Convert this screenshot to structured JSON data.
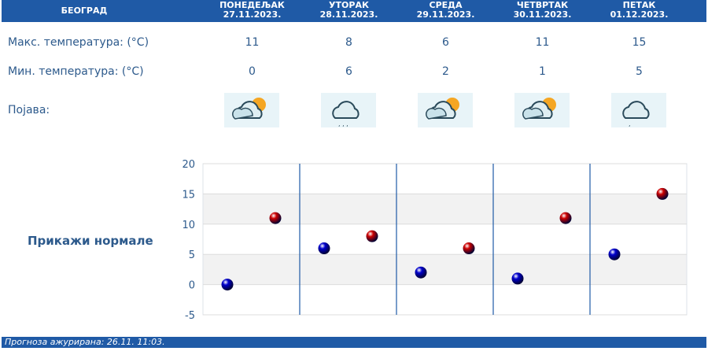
{
  "header": {
    "city": "БЕОГРАД",
    "days": [
      {
        "name": "ПОНЕДЕЉАК",
        "date": "27.11.2023.",
        "max": "11",
        "min": "0",
        "icon": "partly-cloudy-icon"
      },
      {
        "name": "УТОРАК",
        "date": "28.11.2023.",
        "max": "8",
        "min": "6",
        "icon": "cloud-rain-icon"
      },
      {
        "name": "СРЕДА",
        "date": "29.11.2023.",
        "max": "6",
        "min": "2",
        "icon": "partly-cloudy-icon"
      },
      {
        "name": "ЧЕТВРТАК",
        "date": "30.11.2023.",
        "max": "11",
        "min": "1",
        "icon": "partly-cloudy-icon"
      },
      {
        "name": "ПЕТАК",
        "date": "01.12.2023.",
        "max": "15",
        "min": "5",
        "icon": "cloud-light-rain-icon"
      }
    ]
  },
  "labels": {
    "max": "Макс. температура: (°C)",
    "min": "Мин. температура: (°C)",
    "phenomenon": "Појава:"
  },
  "show_normals": "Прикажи нормале",
  "footer": "Прогноза ажурирана:  26.11. 11:03.",
  "chart_data": {
    "type": "scatter",
    "ylim": [
      -5,
      20
    ],
    "yticks": [
      "20",
      "15",
      "10",
      "5",
      "0",
      "-5"
    ],
    "categories": [
      "27.11.2023.",
      "28.11.2023.",
      "29.11.2023.",
      "30.11.2023.",
      "01.12.2023."
    ],
    "series": [
      {
        "values": [
          0,
          6,
          2,
          1,
          5
        ],
        "color": "#0000cc"
      },
      {
        "values": [
          11,
          8,
          6,
          11,
          15
        ],
        "color": "#cc0000"
      }
    ],
    "grid": true
  },
  "colors": {
    "brand": "#1f5aa6",
    "text": "#2d5a8c"
  }
}
